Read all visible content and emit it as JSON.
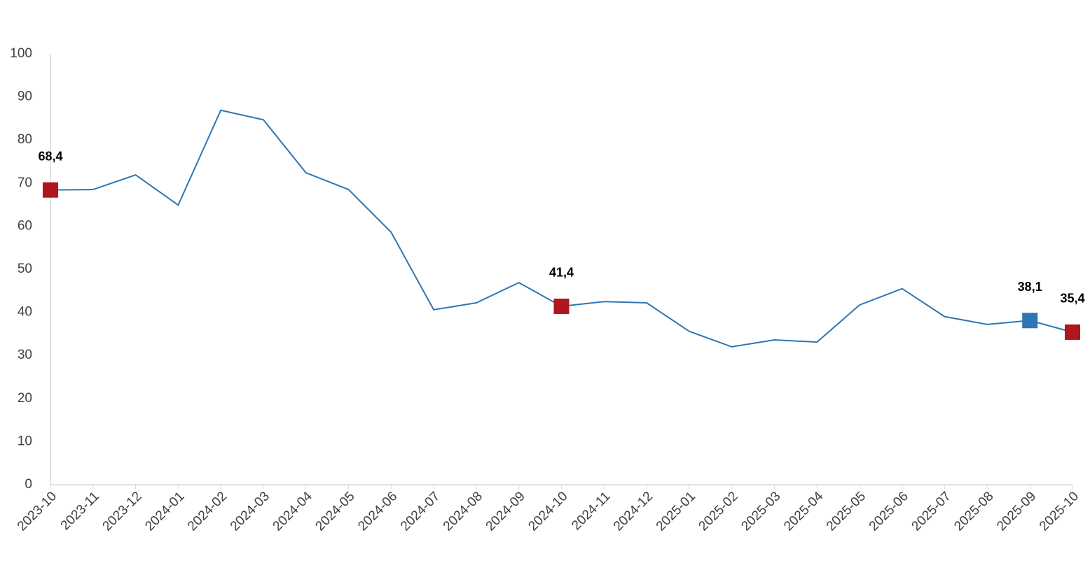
{
  "chart_data": {
    "type": "line",
    "categories": [
      "2023-10",
      "2023-11",
      "2023-12",
      "2024-01",
      "2024-02",
      "2024-03",
      "2024-04",
      "2024-05",
      "2024-06",
      "2024-07",
      "2024-08",
      "2024-09",
      "2024-10",
      "2024-11",
      "2024-12",
      "2025-01",
      "2025-02",
      "2025-03",
      "2025-04",
      "2025-05",
      "2025-06",
      "2025-07",
      "2025-08",
      "2025-09",
      "2025-10"
    ],
    "series": [
      {
        "color": "#2e75b6",
        "values": [
          68.4,
          68.5,
          71.9,
          64.9,
          86.9,
          84.7,
          72.4,
          68.5,
          58.6,
          40.6,
          42.2,
          46.9,
          41.4,
          42.5,
          42.2,
          35.6,
          32.0,
          33.6,
          33.1,
          41.7,
          45.5,
          39.0,
          37.2,
          38.1,
          35.4
        ],
        "value_labels": [
          "68,4",
          null,
          null,
          null,
          null,
          null,
          null,
          null,
          null,
          null,
          null,
          null,
          "41,4",
          null,
          null,
          null,
          null,
          null,
          null,
          null,
          null,
          null,
          null,
          "38,1",
          "35,4"
        ],
        "marker_colors": [
          "#b0161e",
          null,
          null,
          null,
          null,
          null,
          null,
          null,
          null,
          null,
          null,
          null,
          "#b0161e",
          null,
          null,
          null,
          null,
          null,
          null,
          null,
          null,
          null,
          null,
          "#2e75b6",
          "#b0161e"
        ]
      }
    ],
    "ylim": [
      0,
      100
    ],
    "yticks": [
      0,
      10,
      20,
      30,
      40,
      50,
      60,
      70,
      80,
      90,
      100
    ],
    "grid": false
  }
}
